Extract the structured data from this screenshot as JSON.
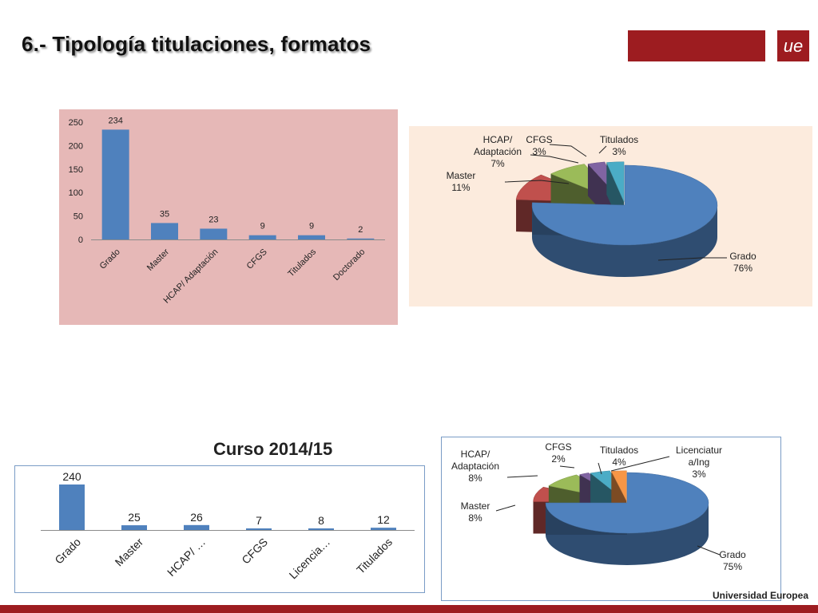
{
  "page": {
    "title": "6.- Tipología titulaciones, formatos",
    "footer": "Universidad Europea",
    "logo_text": "ue"
  },
  "colors": {
    "brand": "#9d1c20",
    "bar": "#4f81bd"
  },
  "chart_data": [
    {
      "type": "bar",
      "categories": [
        "Grado",
        "Master",
        "HCAP/ Adaptación",
        "CFGS",
        "Titulados",
        "Doctorado"
      ],
      "values": [
        234,
        35,
        23,
        9,
        9,
        2
      ],
      "ylim": [
        0,
        250
      ],
      "yticks": [
        "0",
        "50",
        "100",
        "150",
        "200",
        "250"
      ],
      "grid": false,
      "legend": "none"
    },
    {
      "type": "pie",
      "labels": [
        "Grado",
        "Master",
        "HCAP/ Adaptación",
        "CFGS",
        "Titulados"
      ],
      "percents": [
        76,
        11,
        7,
        3,
        3
      ],
      "percent_labels": [
        "76%",
        "11%",
        "7%",
        "3%",
        "3%"
      ],
      "colors": [
        "#4f81bd",
        "#c0504d",
        "#9bbb59",
        "#8064a2",
        "#4bacc6"
      ],
      "legend": "none"
    },
    {
      "type": "bar",
      "title": "Curso 2014/15",
      "categories": [
        "Grado",
        "Master",
        "HCAP/ …",
        "CFGS",
        "Licencia…",
        "Titulados"
      ],
      "values": [
        240,
        25,
        26,
        7,
        8,
        12
      ],
      "grid": false,
      "legend": "none"
    },
    {
      "type": "pie",
      "labels": [
        "Grado",
        "Master",
        "HCAP/ Adaptación",
        "CFGS",
        "Titulados",
        "Licenciatura/Ing"
      ],
      "percents": [
        75,
        8,
        8,
        2,
        4,
        3
      ],
      "percent_labels": [
        "75%",
        "8%",
        "8%",
        "2%",
        "4%",
        "3%"
      ],
      "colors": [
        "#4f81bd",
        "#c0504d",
        "#9bbb59",
        "#8064a2",
        "#4bacc6",
        "#f79646"
      ],
      "legend": "none"
    }
  ]
}
